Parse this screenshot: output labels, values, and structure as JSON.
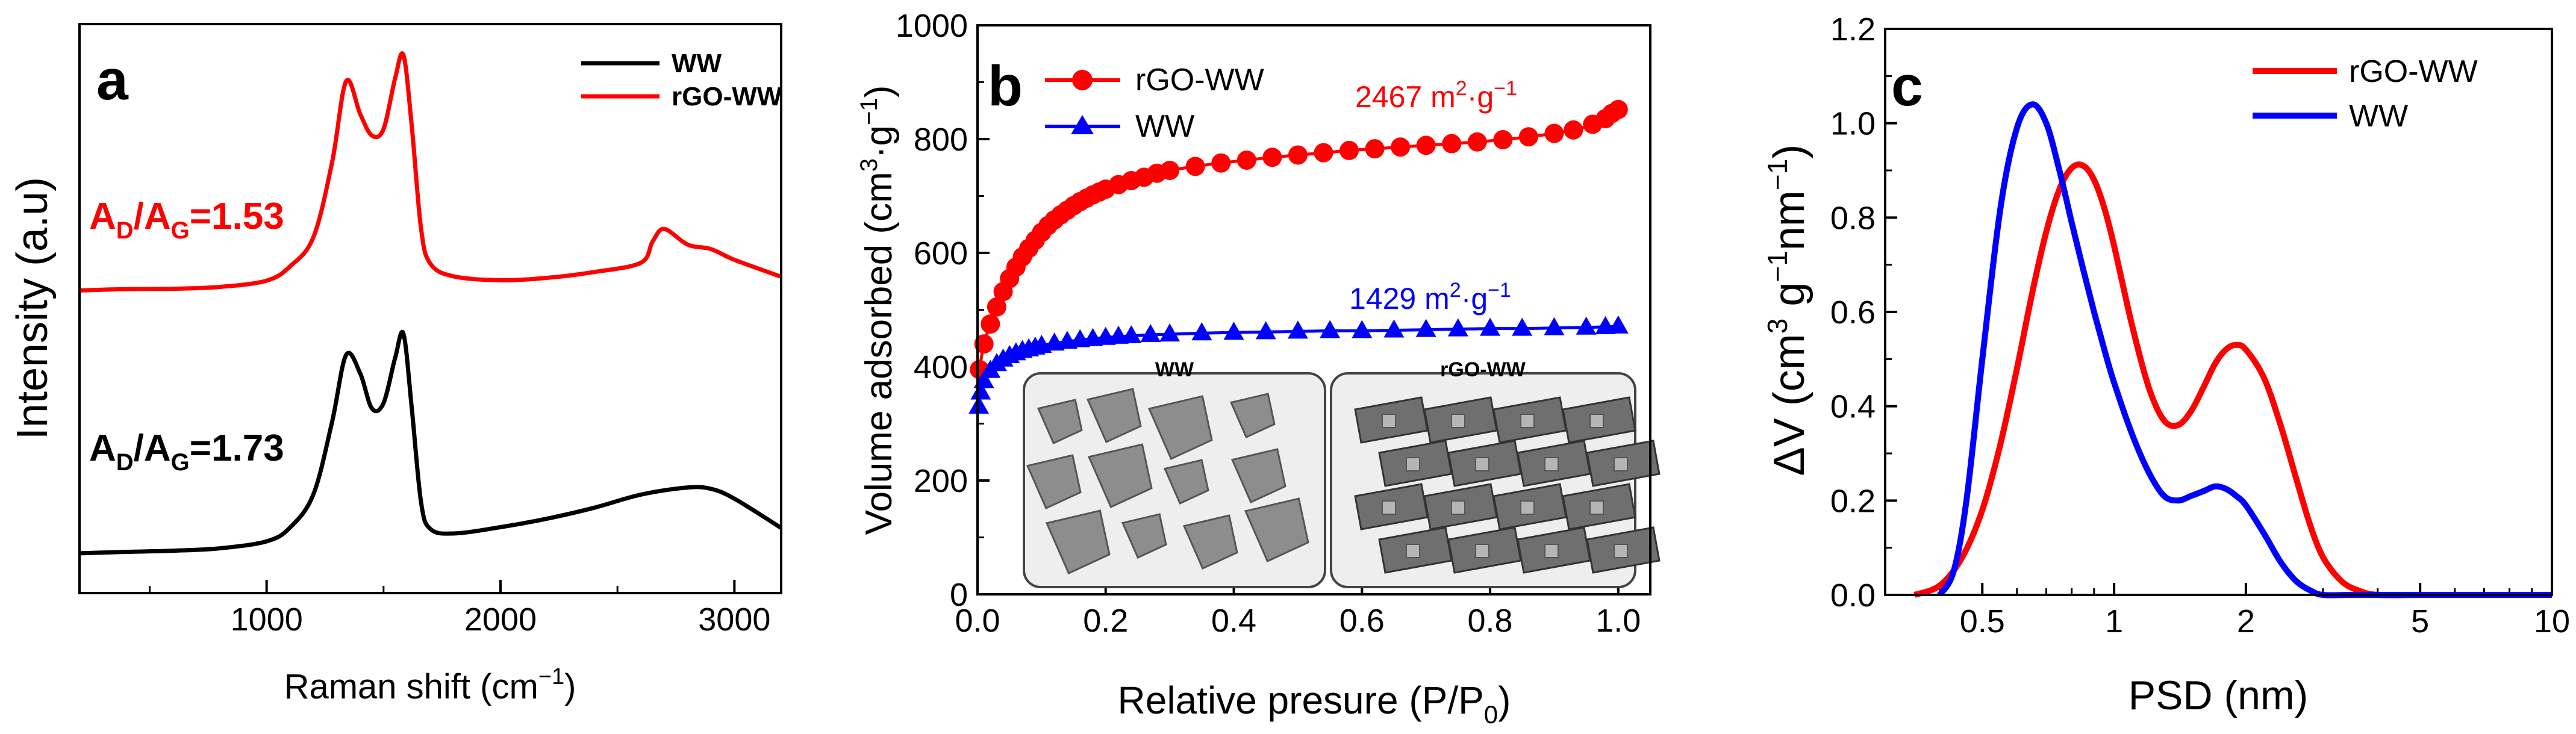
{
  "chart_data": [
    {
      "type": "line",
      "panel_label": "a",
      "xlabel": "Raman shift (cm",
      "xlabel_sup": "−1",
      "xlabel_end": ")",
      "ylabel": "Intensity (a.u)",
      "xlim": [
        200,
        3200
      ],
      "xticks": [
        1000,
        2000,
        3000
      ],
      "xtick_labels": [
        "1000",
        "2000",
        "3000"
      ],
      "ylim": [
        0,
        100
      ],
      "yticks": [],
      "legend": [
        "WW",
        "rGO-WW"
      ],
      "series": [
        {
          "name": "WW",
          "color": "#000000",
          "x": [
            200,
            400,
            600,
            800,
            1000,
            1100,
            1200,
            1280,
            1340,
            1400,
            1450,
            1500,
            1550,
            1585,
            1620,
            1660,
            1700,
            1800,
            2000,
            2200,
            2400,
            2600,
            2800,
            2900,
            3000,
            3200
          ],
          "y": [
            7,
            7,
            7,
            7.3,
            8.5,
            11,
            17,
            30,
            42,
            39,
            33,
            34,
            42,
            46,
            33,
            16,
            11,
            10,
            11,
            12.5,
            14.5,
            17,
            18.5,
            18.5,
            17,
            12
          ]
        },
        {
          "name": "rGO-WW",
          "color": "#ff0000",
          "x": [
            200,
            400,
            600,
            800,
            1000,
            1100,
            1200,
            1280,
            1340,
            1400,
            1450,
            1500,
            1550,
            1585,
            1620,
            1660,
            1700,
            1800,
            2000,
            2200,
            2400,
            2600,
            2650,
            2700,
            2800,
            2900,
            3000,
            3200
          ],
          "y": [
            53,
            53.5,
            53.8,
            54.3,
            55.5,
            58,
            63,
            76,
            90,
            84,
            80,
            81,
            90,
            94,
            82,
            64,
            58,
            56,
            55.5,
            56,
            57,
            58.5,
            62,
            64,
            61,
            60,
            58,
            55
          ]
        }
      ],
      "annotations": [
        {
          "base": "A",
          "sub1": "D",
          "mid": "/A",
          "sub2": "G",
          "end": "=1.53",
          "color": "#ff0000"
        },
        {
          "base": "A",
          "sub1": "D",
          "mid": "/A",
          "sub2": "G",
          "end": "=1.73",
          "color": "#000000"
        }
      ]
    },
    {
      "type": "scatter",
      "panel_label": "b",
      "xlabel": "Relative presure (P/P",
      "xlabel_sub": "0",
      "xlabel_end": ")",
      "ylabel": "Volume adsorbed (cm",
      "ylabel_sup1": "3",
      "ylabel_mid": "·g",
      "ylabel_sup2": "−1",
      "ylabel_end": ")",
      "xlim": [
        0,
        1.05
      ],
      "xticks": [
        0,
        0.2,
        0.4,
        0.6,
        0.8,
        1.0
      ],
      "xtick_labels": [
        "0.0",
        "0.2",
        "0.4",
        "0.6",
        "0.8",
        "1.0"
      ],
      "ylim": [
        0,
        1000
      ],
      "yticks": [
        0,
        200,
        400,
        600,
        800,
        1000
      ],
      "ytick_labels": [
        "0",
        "200",
        "400",
        "600",
        "800",
        "1000"
      ],
      "legend": [
        "rGO-WW",
        "WW"
      ],
      "series": [
        {
          "name": "rGO-WW",
          "color": "#ff0000",
          "marker": "circle",
          "x": [
            0.003,
            0.01,
            0.02,
            0.03,
            0.04,
            0.05,
            0.06,
            0.07,
            0.08,
            0.09,
            0.1,
            0.11,
            0.12,
            0.13,
            0.14,
            0.15,
            0.16,
            0.17,
            0.18,
            0.19,
            0.2,
            0.22,
            0.24,
            0.26,
            0.28,
            0.3,
            0.34,
            0.38,
            0.42,
            0.46,
            0.5,
            0.54,
            0.58,
            0.62,
            0.66,
            0.7,
            0.74,
            0.78,
            0.82,
            0.86,
            0.9,
            0.93,
            0.96,
            0.98,
            0.99,
            1.0
          ],
          "y": [
            395,
            440,
            475,
            505,
            532,
            555,
            575,
            593,
            608,
            622,
            636,
            648,
            658,
            667,
            675,
            683,
            690,
            696,
            702,
            707,
            712,
            720,
            727,
            733,
            740,
            745,
            752,
            758,
            763,
            768,
            772,
            776,
            780,
            783,
            786,
            789,
            792,
            795,
            799,
            804,
            810,
            816,
            826,
            836,
            845,
            852
          ]
        },
        {
          "name": "WW",
          "color": "#0000ff",
          "marker": "triangle",
          "x": [
            0.002,
            0.005,
            0.01,
            0.02,
            0.03,
            0.04,
            0.05,
            0.06,
            0.07,
            0.08,
            0.09,
            0.1,
            0.12,
            0.14,
            0.16,
            0.18,
            0.2,
            0.22,
            0.24,
            0.27,
            0.3,
            0.35,
            0.4,
            0.45,
            0.5,
            0.55,
            0.6,
            0.65,
            0.7,
            0.75,
            0.8,
            0.85,
            0.9,
            0.95,
            0.98,
            1.0
          ],
          "y": [
            330,
            355,
            375,
            393,
            405,
            413,
            419,
            424,
            428,
            431,
            434,
            437,
            441,
            444,
            447,
            449,
            451,
            453,
            454,
            456,
            457,
            459,
            460,
            461,
            462,
            463,
            463,
            464,
            465,
            466,
            467,
            467,
            468,
            469,
            470,
            471
          ]
        }
      ],
      "annotations": [
        {
          "value": "2467 m",
          "sup1": "2",
          "mid": "·g",
          "sup2": "−1",
          "color": "#ff0000"
        },
        {
          "value": "1429 m",
          "sup1": "2",
          "mid": "·g",
          "sup2": "−1",
          "color": "#0000ff"
        }
      ],
      "insets": [
        {
          "title": "WW"
        },
        {
          "title": "rGO-WW"
        }
      ]
    },
    {
      "type": "line",
      "panel_label": "c",
      "xscale": "log",
      "xlabel": "PSD (nm)",
      "ylabel_delta": "ΔV (cm",
      "ylabel_sup1": "3",
      "ylabel_mid": " g",
      "ylabel_sup2": "−1",
      "ylabel_mid2": "nm",
      "ylabel_sup3": "−1",
      "ylabel_end": ")",
      "xlim": [
        0.3,
        10
      ],
      "xticks": [
        0.5,
        1,
        2,
        5,
        10
      ],
      "xtick_labels": [
        "0.5",
        "1",
        "2",
        "5",
        "10"
      ],
      "ylim": [
        0,
        1.2
      ],
      "yticks": [
        0,
        0.2,
        0.4,
        0.6,
        0.8,
        1.0,
        1.2
      ],
      "ytick_labels": [
        "0.0",
        "0.2",
        "0.4",
        "0.6",
        "0.8",
        "1.0",
        "1.2"
      ],
      "legend": [
        "rGO-WW",
        "WW"
      ],
      "series": [
        {
          "name": "rGO-WW",
          "color": "#ff0000",
          "x": [
            0.35,
            0.4,
            0.45,
            0.5,
            0.55,
            0.6,
            0.65,
            0.7,
            0.75,
            0.8,
            0.85,
            0.9,
            0.95,
            1.0,
            1.1,
            1.2,
            1.3,
            1.4,
            1.5,
            1.6,
            1.7,
            1.8,
            1.9,
            2.0,
            2.2,
            2.4,
            2.6,
            2.8,
            3.0,
            3.3,
            3.6,
            4.0,
            5,
            7,
            10
          ],
          "y": [
            0,
            0.02,
            0.08,
            0.18,
            0.32,
            0.48,
            0.64,
            0.77,
            0.86,
            0.905,
            0.91,
            0.88,
            0.82,
            0.74,
            0.57,
            0.44,
            0.37,
            0.36,
            0.39,
            0.44,
            0.49,
            0.52,
            0.53,
            0.52,
            0.46,
            0.36,
            0.25,
            0.15,
            0.08,
            0.03,
            0.01,
            0,
            0,
            0,
            0
          ]
        },
        {
          "name": "WW",
          "color": "#0000ff",
          "x": [
            0.4,
            0.43,
            0.46,
            0.5,
            0.55,
            0.6,
            0.65,
            0.7,
            0.75,
            0.8,
            0.85,
            0.9,
            0.95,
            1.0,
            1.1,
            1.2,
            1.3,
            1.4,
            1.5,
            1.6,
            1.7,
            1.8,
            1.9,
            2.0,
            2.2,
            2.4,
            2.6,
            2.8,
            3.0,
            3.5,
            5,
            7,
            10
          ],
          "y": [
            0,
            0.05,
            0.2,
            0.5,
            0.82,
            0.99,
            1.04,
            1.0,
            0.9,
            0.79,
            0.69,
            0.6,
            0.52,
            0.45,
            0.34,
            0.26,
            0.21,
            0.2,
            0.21,
            0.22,
            0.23,
            0.225,
            0.21,
            0.19,
            0.13,
            0.07,
            0.03,
            0.01,
            0,
            0,
            0,
            0,
            0
          ]
        }
      ]
    }
  ]
}
